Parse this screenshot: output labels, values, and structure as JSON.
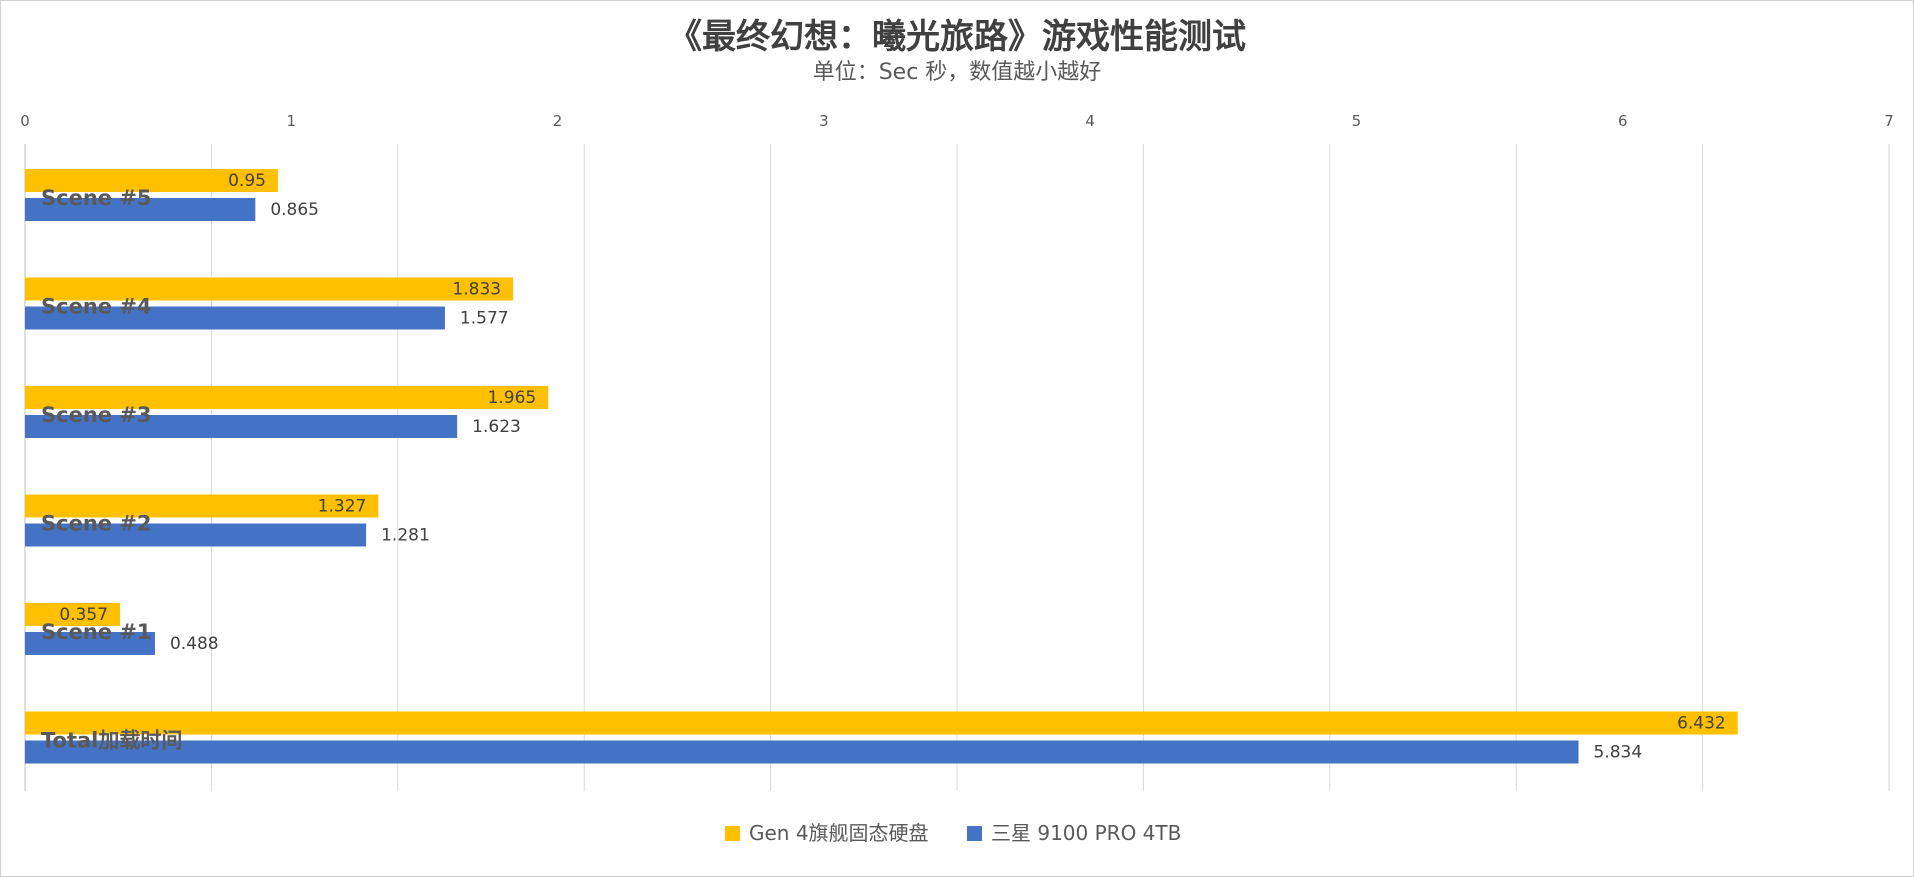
{
  "chart_data": {
    "type": "bar",
    "orientation": "horizontal",
    "title": "《最终幻想：曦光旅路》游戏性能测试",
    "subtitle": "单位：Sec 秒，数值越小越好",
    "categories": [
      "Scene #5",
      "Scene #4",
      "Scene #3",
      "Scene #2",
      "Scene #1",
      "Total加载时间"
    ],
    "series": [
      {
        "name": "Gen 4旗舰固态硬盘",
        "color": "#FFC000",
        "values": [
          0.95,
          1.833,
          1.965,
          1.327,
          0.357,
          6.432
        ]
      },
      {
        "name": "三星 9100 PRO 4TB",
        "color": "#4472C4",
        "values": [
          0.865,
          1.577,
          1.623,
          1.281,
          0.488,
          5.834
        ]
      }
    ],
    "xlim": [
      0,
      7
    ],
    "xticks": [
      "0",
      "1",
      "2",
      "3",
      "4",
      "5",
      "6",
      "7"
    ],
    "data_labels": {
      "series0": [
        "0.95",
        "1.833",
        "1.965",
        "1.327",
        "0.357",
        "6.432"
      ],
      "series1": [
        "0.865",
        "1.577",
        "1.623",
        "1.281",
        "0.488",
        "5.834"
      ]
    },
    "grid": true,
    "x_axis_position": "top",
    "legend_position": "bottom"
  }
}
